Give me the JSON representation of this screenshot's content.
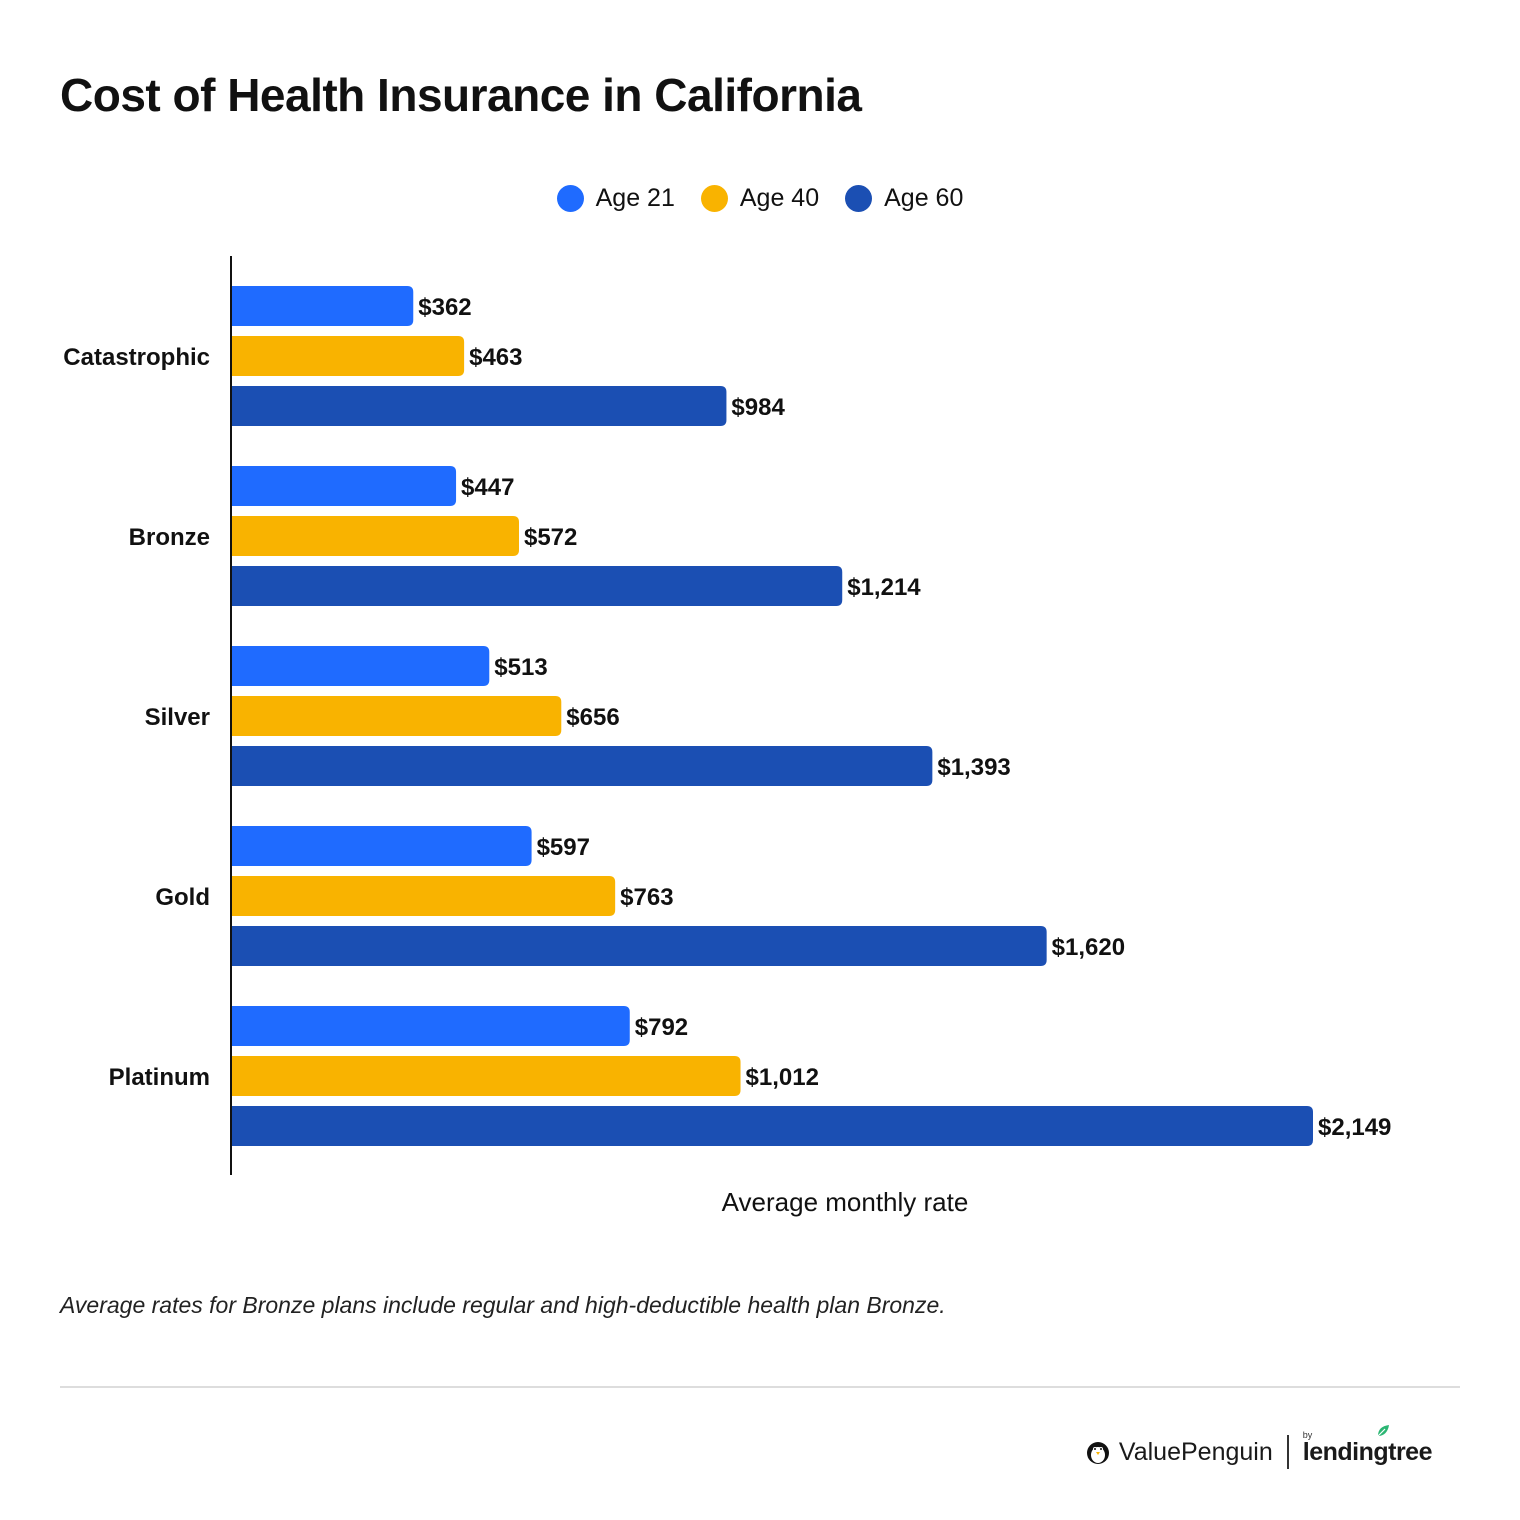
{
  "title": "Cost of Health Insurance in California",
  "footnote": "Average rates for Bronze plans include regular and high-deductible health plan Bronze.",
  "brand": {
    "valuepenguin": "ValuePenguin",
    "by": "by",
    "lendingtree": "lendingtree"
  },
  "colors": {
    "age21": "#1f6bff",
    "age40": "#f9b300",
    "age60": "#1b4fb3",
    "brand_green": "#2bb673"
  },
  "chart_data": {
    "type": "bar",
    "orientation": "horizontal",
    "title": "Cost of Health Insurance in California",
    "xlabel": "Average monthly rate",
    "ylabel": "",
    "legend_position": "top-center",
    "grid": false,
    "xlim": [
      0,
      2149
    ],
    "categories": [
      "Catastrophic",
      "Bronze",
      "Silver",
      "Gold",
      "Platinum"
    ],
    "series": [
      {
        "name": "Age 21",
        "color": "#1f6bff",
        "values": [
          362,
          447,
          513,
          597,
          792
        ],
        "labels": [
          "$362",
          "$447",
          "$513",
          "$597",
          "$792"
        ]
      },
      {
        "name": "Age 40",
        "color": "#f9b300",
        "values": [
          463,
          572,
          656,
          763,
          1012
        ],
        "labels": [
          "$463",
          "$572",
          "$656",
          "$763",
          "$1,012"
        ]
      },
      {
        "name": "Age 60",
        "color": "#1b4fb3",
        "values": [
          984,
          1214,
          1393,
          1620,
          2149
        ],
        "labels": [
          "$984",
          "$1,214",
          "$1,393",
          "$1,620",
          "$2,149"
        ]
      }
    ]
  }
}
